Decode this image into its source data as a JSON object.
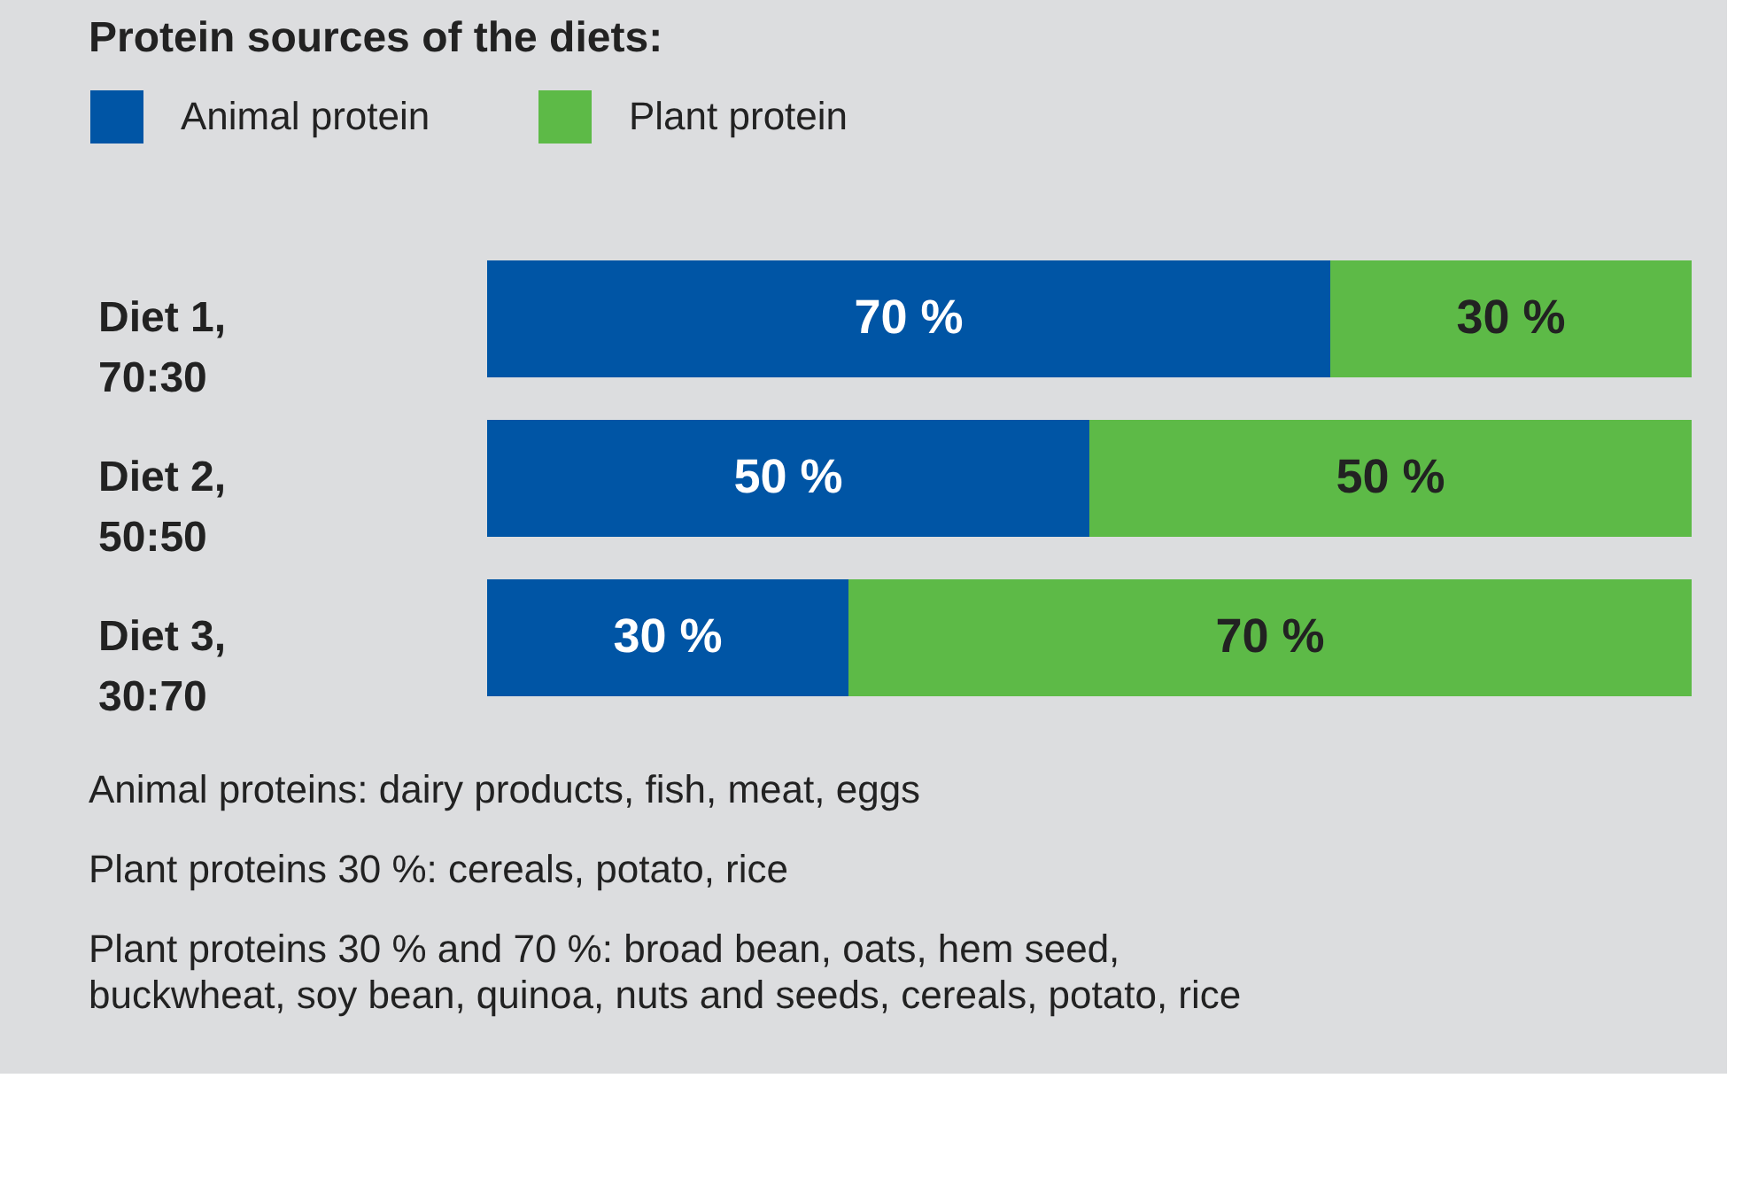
{
  "chart_data": {
    "type": "bar",
    "orientation": "horizontal",
    "stacked": true,
    "legend_title": "Protein sources of the diets:",
    "legend": "top left",
    "categories": [
      "Diet 1,\n70:30",
      "Diet 2,\n50:50",
      "Diet 3,\n30:70"
    ],
    "series": [
      {
        "name": "Animal protein",
        "color": "#0055a5",
        "values": [
          70,
          50,
          30
        ],
        "value_labels": [
          "70 %",
          "50 %",
          "30 %"
        ]
      },
      {
        "name": "Plant protein",
        "color": "#5dba47",
        "values": [
          30,
          50,
          70
        ],
        "value_labels": [
          "30 %",
          "50 %",
          "70 %"
        ]
      }
    ],
    "annotations": [
      "Animal proteins: dairy products, fish, meat, eggs",
      "Plant proteins 30 %: cereals, potato, rice",
      "Plant proteins 30 % and 70 %: broad bean, oats, hem seed,\nbuckwheat, soy bean, quinoa, nuts and seeds, cereals, potato, rice"
    ]
  }
}
